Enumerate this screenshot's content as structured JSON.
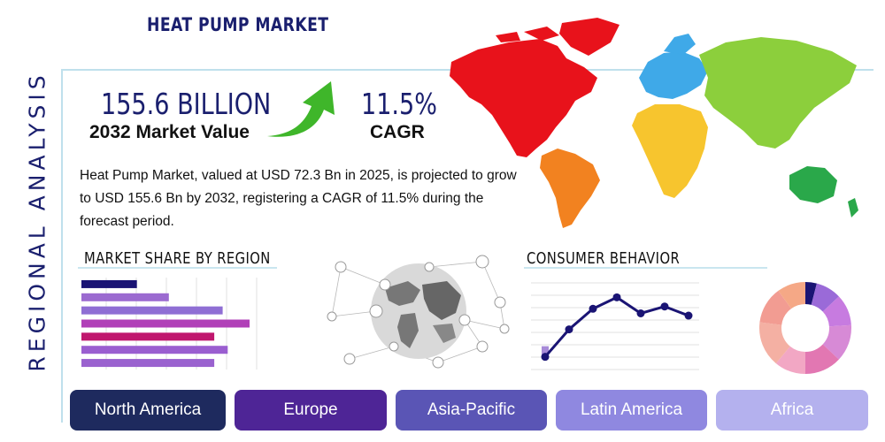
{
  "title": "HEAT PUMP MARKET",
  "side_title": "REGIONAL ANALYSIS",
  "market_value": {
    "value": "155.6 BILLION",
    "label": "2032 Market Value"
  },
  "cagr": {
    "value": "11.5%",
    "label": "CAGR"
  },
  "description": "Heat Pump Market, valued at USD 72.3 Bn in 2025, is projected to grow to USD 155.6 Bn by 2032, registering a CAGR of 11.5% during the forecast period.",
  "sections": {
    "market_share": "MARKET SHARE BY REGION",
    "consumer_behavior": "CONSUMER BEHAVIOR"
  },
  "regions": [
    "North America",
    "Europe",
    "Asia-Pacific",
    "Latin America",
    "Africa"
  ],
  "colors": {
    "navy": "#1a1f6e",
    "north_america": "#1e2a5e",
    "europe": "#4e2596",
    "asia_pacific": "#5a55b5",
    "latin_america": "#8f88e0",
    "africa": "#b4b1ee",
    "map_na": "#e8121b",
    "map_sa": "#f28220",
    "map_europe": "#3fa9e8",
    "map_asia": "#8ccf3c",
    "map_africa": "#f7c52e",
    "map_oceania": "#2aa84a",
    "arrow_green": "#3fb62a"
  },
  "chart_data": [
    {
      "type": "bar",
      "values": [
        0.33,
        0.52,
        0.84,
        1.0,
        0.79,
        0.87,
        0.79
      ],
      "colors": [
        "#1a1474",
        "#9b6ad0",
        "#8f6ed4",
        "#b140b8",
        "#c0176e",
        "#9a5ed0",
        "#9a62cf"
      ]
    },
    {
      "type": "line",
      "values": [
        1,
        2.2,
        3.1,
        3.6,
        2.9,
        3.2,
        2.8
      ]
    },
    {
      "type": "pie",
      "values": [
        4,
        9,
        11,
        13,
        13,
        11,
        16,
        13,
        10
      ],
      "colors": [
        "#1a1474",
        "#9a6ad8",
        "#c77be0",
        "#d78ad6",
        "#e277b2",
        "#f2a7c4",
        "#f4b0a3",
        "#f29c92",
        "#f5a886"
      ]
    }
  ]
}
